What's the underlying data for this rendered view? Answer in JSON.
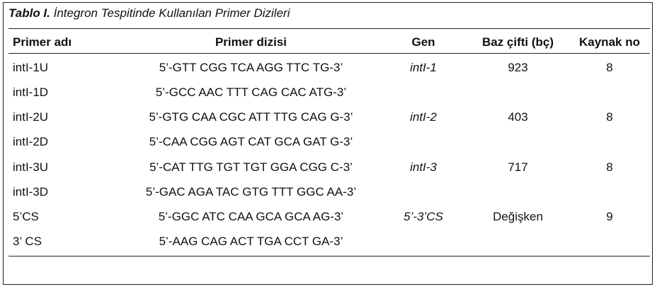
{
  "caption": {
    "label": "Tablo I.",
    "title": "İntegron Tespitinde Kullanılan Primer Dizileri"
  },
  "table": {
    "headers": {
      "name": "Primer adı",
      "sequence": "Primer dizisi",
      "gene": "Gen",
      "bp": "Baz çifti (bç)",
      "ref": "Kaynak no"
    },
    "rows": [
      {
        "name": "intI-1U",
        "sequence": "5’-GTT CGG TCA AGG TTC TG-3’",
        "gene": "intI-1",
        "bp": "923",
        "ref": "8"
      },
      {
        "name": "intI-1D",
        "sequence": "5’-GCC AAC TTT CAG CAC ATG-3’",
        "gene": "",
        "bp": "",
        "ref": ""
      },
      {
        "name": "intI-2U",
        "sequence": "5’-GTG CAA CGC ATT TTG CAG G-3’",
        "gene": "intI-2",
        "bp": "403",
        "ref": "8"
      },
      {
        "name": "intI-2D",
        "sequence": "5’-CAA CGG AGT CAT GCA GAT G-3’",
        "gene": "",
        "bp": "",
        "ref": ""
      },
      {
        "name": "intI-3U",
        "sequence": "5’-CAT TTG TGT TGT GGA CGG C-3’",
        "gene": "intI-3",
        "bp": "717",
        "ref": "8"
      },
      {
        "name": "intI-3D",
        "sequence": "5’-GAC AGA TAC GTG TTT GGC AA-3’",
        "gene": "",
        "bp": "",
        "ref": ""
      },
      {
        "name": "5’CS",
        "sequence": "5’-GGC ATC CAA GCA GCA AG-3’",
        "gene": "5’-3’CS",
        "bp": "Değişken",
        "ref": "9"
      },
      {
        "name": "3’ CS",
        "sequence": "5’-AAG CAG ACT TGA CCT GA-3’",
        "gene": "",
        "bp": "",
        "ref": ""
      }
    ]
  }
}
